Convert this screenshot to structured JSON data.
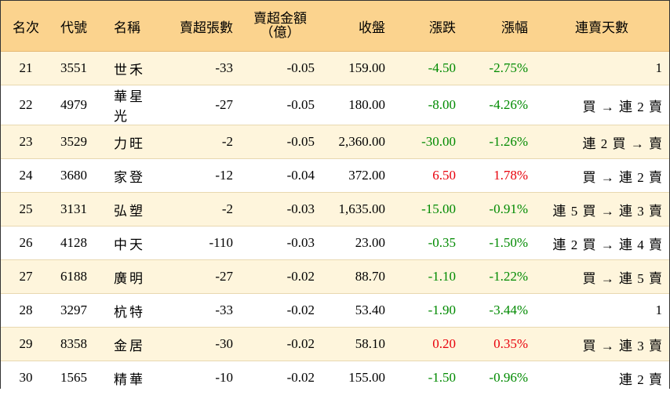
{
  "headers": {
    "rank": "名次",
    "code": "代號",
    "name": "名稱",
    "net_sell_lots": "賣超張數",
    "net_sell_amount_line1": "賣超金額",
    "net_sell_amount_line2": "（億）",
    "close": "收盤",
    "change": "漲跌",
    "change_pct": "漲幅",
    "streak": "連賣天數"
  },
  "colors": {
    "header_bg": "#fbd38e",
    "row_alt_bg": "#fef5dc",
    "up": "#e8000b",
    "down": "#008a00"
  },
  "rows": [
    {
      "rank": "21",
      "code": "3551",
      "name": "世禾",
      "lots": "-33",
      "amount": "-0.05",
      "close": "159.00",
      "change": "-4.50",
      "pct": "-2.75%",
      "dir": "down",
      "streak": "1"
    },
    {
      "rank": "22",
      "code": "4979",
      "name": "華星光",
      "lots": "-27",
      "amount": "-0.05",
      "close": "180.00",
      "change": "-8.00",
      "pct": "-4.26%",
      "dir": "down",
      "streak": "買 → 連 2 賣"
    },
    {
      "rank": "23",
      "code": "3529",
      "name": "力旺",
      "lots": "-2",
      "amount": "-0.05",
      "close": "2,360.00",
      "change": "-30.00",
      "pct": "-1.26%",
      "dir": "down",
      "streak": "連 2 買 → 賣"
    },
    {
      "rank": "24",
      "code": "3680",
      "name": "家登",
      "lots": "-12",
      "amount": "-0.04",
      "close": "372.00",
      "change": "6.50",
      "pct": "1.78%",
      "dir": "up",
      "streak": "買 → 連 2 賣"
    },
    {
      "rank": "25",
      "code": "3131",
      "name": "弘塑",
      "lots": "-2",
      "amount": "-0.03",
      "close": "1,635.00",
      "change": "-15.00",
      "pct": "-0.91%",
      "dir": "down",
      "streak": "連 5 買 → 連 3 賣"
    },
    {
      "rank": "26",
      "code": "4128",
      "name": "中天",
      "lots": "-110",
      "amount": "-0.03",
      "close": "23.00",
      "change": "-0.35",
      "pct": "-1.50%",
      "dir": "down",
      "streak": "連 2 買 → 連 4 賣"
    },
    {
      "rank": "27",
      "code": "6188",
      "name": "廣明",
      "lots": "-27",
      "amount": "-0.02",
      "close": "88.70",
      "change": "-1.10",
      "pct": "-1.22%",
      "dir": "down",
      "streak": "買 → 連 5 賣"
    },
    {
      "rank": "28",
      "code": "3297",
      "name": "杭特",
      "lots": "-33",
      "amount": "-0.02",
      "close": "53.40",
      "change": "-1.90",
      "pct": "-3.44%",
      "dir": "down",
      "streak": "1"
    },
    {
      "rank": "29",
      "code": "8358",
      "name": "金居",
      "lots": "-30",
      "amount": "-0.02",
      "close": "58.10",
      "change": "0.20",
      "pct": "0.35%",
      "dir": "up",
      "streak": "買 → 連 3 賣"
    },
    {
      "rank": "30",
      "code": "1565",
      "name": "精華",
      "lots": "-10",
      "amount": "-0.02",
      "close": "155.00",
      "change": "-1.50",
      "pct": "-0.96%",
      "dir": "down",
      "streak": "連 2 賣"
    }
  ]
}
